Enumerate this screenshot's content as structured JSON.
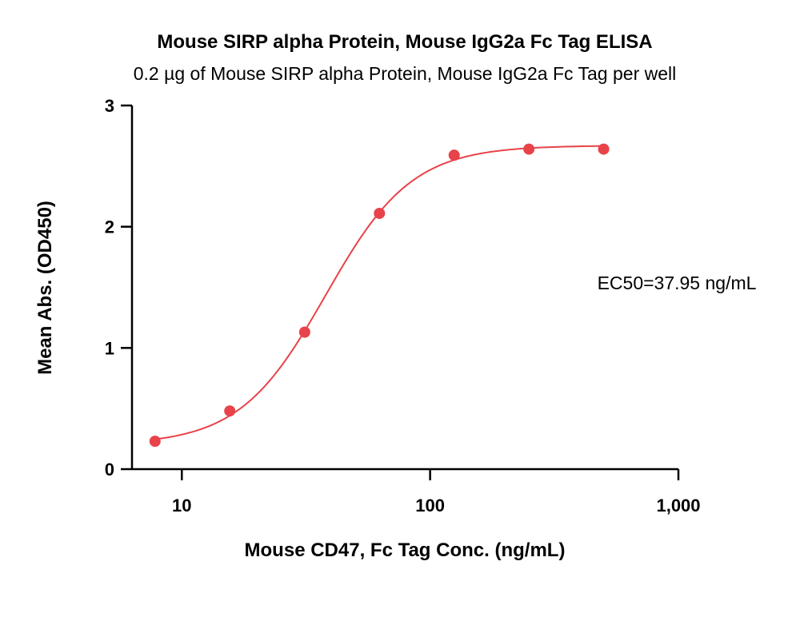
{
  "chart_data": {
    "type": "scatter",
    "title": "Mouse SIRP alpha Protein, Mouse IgG2a Fc Tag ELISA",
    "subtitle": "0.2 µg of Mouse SIRP alpha Protein, Mouse IgG2a Fc Tag per well",
    "xlabel": "Mouse CD47, Fc Tag Conc. (ng/mL)",
    "ylabel": "Mean Abs. (OD450)",
    "x_scale": "log",
    "xlim": [
      6.3,
      1000
    ],
    "ylim": [
      0,
      3
    ],
    "x_ticks": [
      10,
      100,
      1000
    ],
    "x_tick_labels": [
      "10",
      "100",
      "1,000"
    ],
    "y_ticks": [
      0,
      1,
      2,
      3
    ],
    "y_tick_labels": [
      "0",
      "1",
      "2",
      "3"
    ],
    "grid": false,
    "series": [
      {
        "color": "#e8434a",
        "x": [
          7.8,
          15.6,
          31.25,
          62.5,
          125,
          250,
          500
        ],
        "y": [
          0.23,
          0.48,
          1.13,
          2.11,
          2.59,
          2.64,
          2.64
        ],
        "fit": {
          "model": "4PL",
          "bottom": 0.2,
          "top": 2.67,
          "ec50": 37.95,
          "hill": 2.5
        }
      }
    ],
    "annotations": [
      "EC50=37.95 ng/mL"
    ]
  }
}
